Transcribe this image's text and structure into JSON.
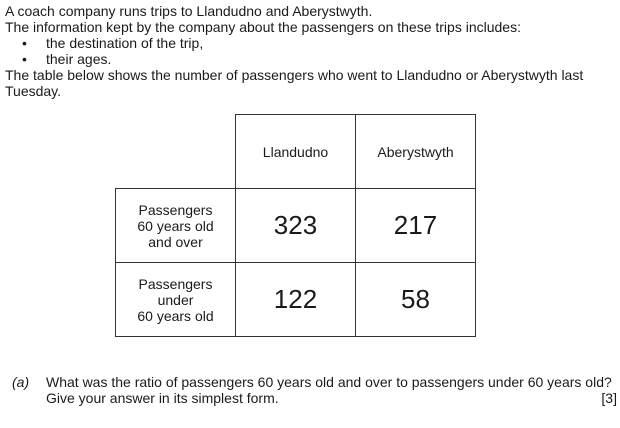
{
  "intro": {
    "line1": "A coach company runs trips to Llandudno and Aberystwyth.",
    "line2": "The information kept by the company about the passengers on these trips includes:",
    "bullets": [
      "the destination of the trip,",
      "their ages."
    ],
    "line3": "The table below shows the number of passengers who went to Llandudno or Aberystwyth last Tuesday."
  },
  "table": {
    "columns": [
      "Llandudno",
      "Aberystwyth"
    ],
    "rows": [
      {
        "label": [
          "Passengers",
          "60 years old",
          "and over"
        ],
        "values": [
          "323",
          "217"
        ]
      },
      {
        "label": [
          "Passengers",
          "under",
          "60 years old"
        ],
        "values": [
          "122",
          "58"
        ]
      }
    ]
  },
  "question": {
    "label": "(a)",
    "text": "What was the ratio of passengers 60 years old and over to passengers under 60 years old?",
    "instruction": "Give your answer in its simplest form.",
    "marks": "[3]"
  }
}
